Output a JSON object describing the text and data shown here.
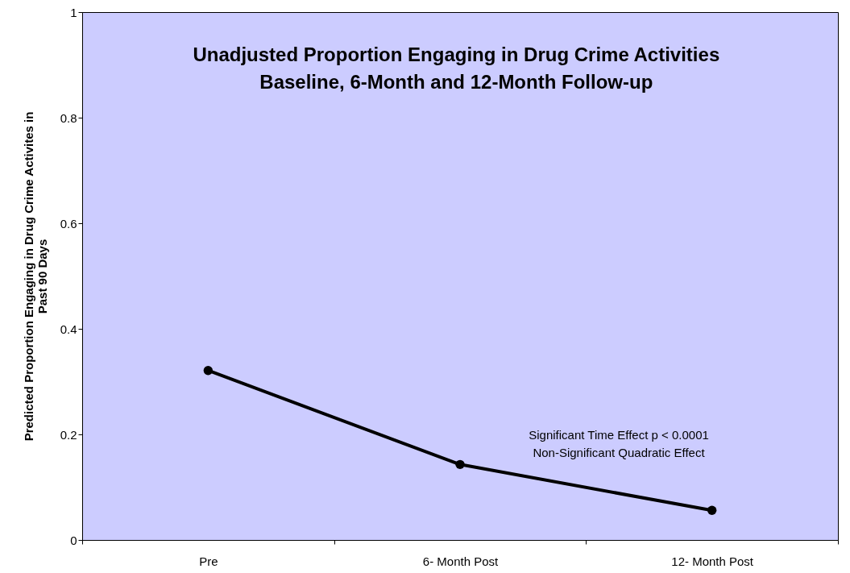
{
  "chart_data": {
    "type": "line",
    "title": "Unadjusted Proportion Engaging in Drug Crime Activities\nBaseline, 6-Month and 12-Month Follow-up",
    "ylabel": "Predicted Proportion Engaging in Drug Crime Activites in\nPast 90 Days",
    "categories": [
      "Pre",
      "6- Month Post",
      "12- Month Post"
    ],
    "series": [
      {
        "color": "#000000",
        "values": [
          0.321,
          0.143,
          0.056
        ]
      }
    ],
    "ylim": [
      0,
      1
    ],
    "yticks": [
      0,
      0.2,
      0.4,
      0.6,
      0.8,
      1
    ],
    "annotations": [
      "Significant Time Effect p < 0.0001\nNon-Significant Quadratic Effect"
    ],
    "grid": false,
    "marker": "circle",
    "line_style": "solid"
  }
}
